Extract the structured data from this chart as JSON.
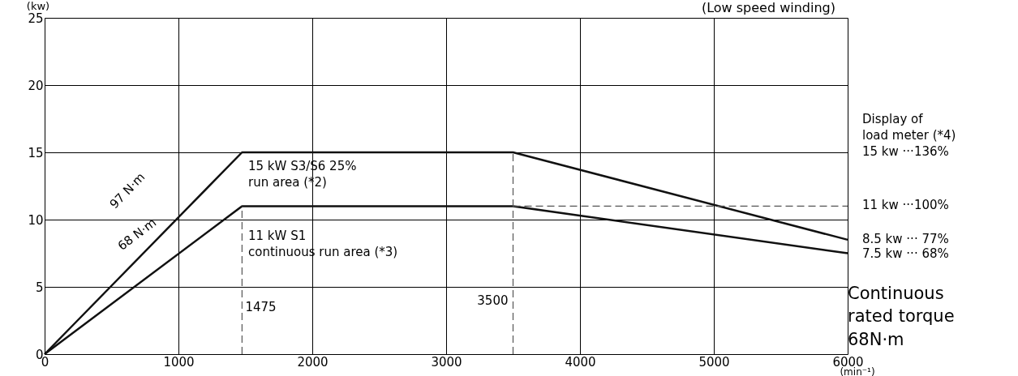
{
  "chart_data": {
    "type": "line",
    "xlabel": "(min⁻¹)",
    "ylabel": "(kw)",
    "xlim": [
      0,
      6000
    ],
    "xticks": [
      0,
      {
        "value": 1000,
        "label": "1000"
      },
      {
        "value": 2000,
        "label": "2000"
      },
      {
        "value": 3000,
        "label": "3000"
      },
      {
        "value": 4000,
        "label": "4000"
      },
      {
        "value": 5000,
        "label": "5000"
      },
      {
        "value": 6000,
        "label": "6000"
      }
    ],
    "ylim": [
      0,
      25
    ],
    "yticks": [
      0,
      5,
      10,
      15,
      20,
      25
    ],
    "grid": true,
    "marker": "none",
    "series": [
      {
        "color": "#111111",
        "line_style": "solid",
        "x": [
          0,
          1475,
          3500,
          6000
        ],
        "values": [
          0,
          15,
          15,
          8.5
        ]
      },
      {
        "color": "#111111",
        "line_style": "solid",
        "x": [
          0,
          1475,
          3500,
          6000
        ],
        "values": [
          0,
          11,
          11,
          7.5
        ]
      },
      {
        "color": "#555555",
        "line_style": "dashed",
        "x": [
          3500,
          6000
        ],
        "values": [
          11,
          11
        ]
      },
      {
        "color": "#555555",
        "line_style": "dashed",
        "x": [
          1475,
          1475
        ],
        "values": [
          0,
          11
        ]
      },
      {
        "color": "#555555",
        "line_style": "dashed",
        "x": [
          3500,
          3500
        ],
        "values": [
          0,
          15
        ]
      }
    ],
    "annotations": [
      "(Low speed winding)",
      "97 N·m",
      "68 N·m",
      "15 kW S3/S6 25%\nrun area (*2)",
      "11 kW S1\ncontinuous run area (*3)",
      "Display of\nload meter (*4)",
      "Continuous\nrated torque\n68N·m",
      "15 kw ···136%",
      "11 kw ···100%",
      "8.5 kw ··· 77%",
      "7.5 kw ··· 68%",
      {
        "text": "1475",
        "x": 1475,
        "y": 3.5
      },
      {
        "text": "3500",
        "x": 3500,
        "y": 4
      }
    ]
  }
}
